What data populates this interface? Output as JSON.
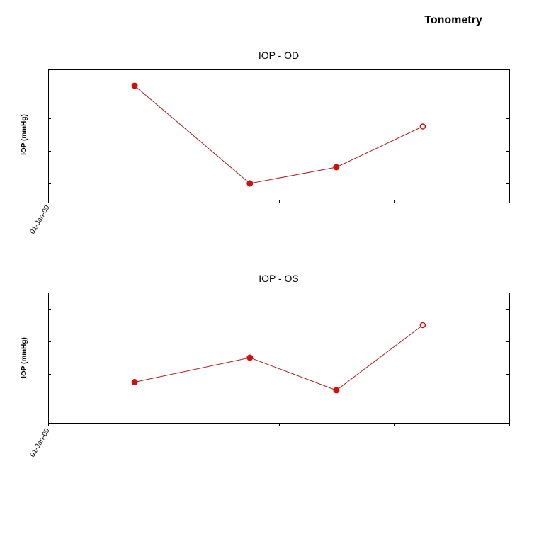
{
  "page": {
    "title": "Tonometry"
  },
  "colors": {
    "series": "#cc1111",
    "line": "#a52020",
    "axis": "#000000"
  },
  "chart_data": [
    {
      "type": "line",
      "title": "IOP - OD",
      "ylabel": "IOP (mmHg)",
      "xlabel": "",
      "x_tick_labels": [
        "01-Jan-09"
      ],
      "x_range": [
        0,
        8
      ],
      "x_ticks": [
        0,
        2,
        4,
        6,
        8
      ],
      "ylim": [
        0,
        4
      ],
      "y_ticks": [
        0.5,
        1.5,
        2.5,
        3.5
      ],
      "grid": false,
      "series": [
        {
          "x": [
            1.5,
            3.5,
            5,
            6.5
          ],
          "y": [
            3.5,
            0.5,
            1.0,
            2.25
          ],
          "markers": [
            "filled",
            "filled",
            "filled",
            "hollow"
          ]
        }
      ]
    },
    {
      "type": "line",
      "title": "IOP - OS",
      "ylabel": "IOP (mmHg)",
      "xlabel": "",
      "x_tick_labels": [
        "01-Jan-09"
      ],
      "x_range": [
        0,
        8
      ],
      "x_ticks": [
        0,
        2,
        4,
        6,
        8
      ],
      "ylim": [
        0,
        4
      ],
      "y_ticks": [
        0.5,
        1.5,
        2.5,
        3.5
      ],
      "grid": false,
      "series": [
        {
          "x": [
            1.5,
            3.5,
            5,
            6.5
          ],
          "y": [
            1.25,
            2.0,
            1.0,
            3.0
          ],
          "markers": [
            "filled",
            "filled",
            "filled",
            "hollow"
          ]
        }
      ]
    }
  ]
}
